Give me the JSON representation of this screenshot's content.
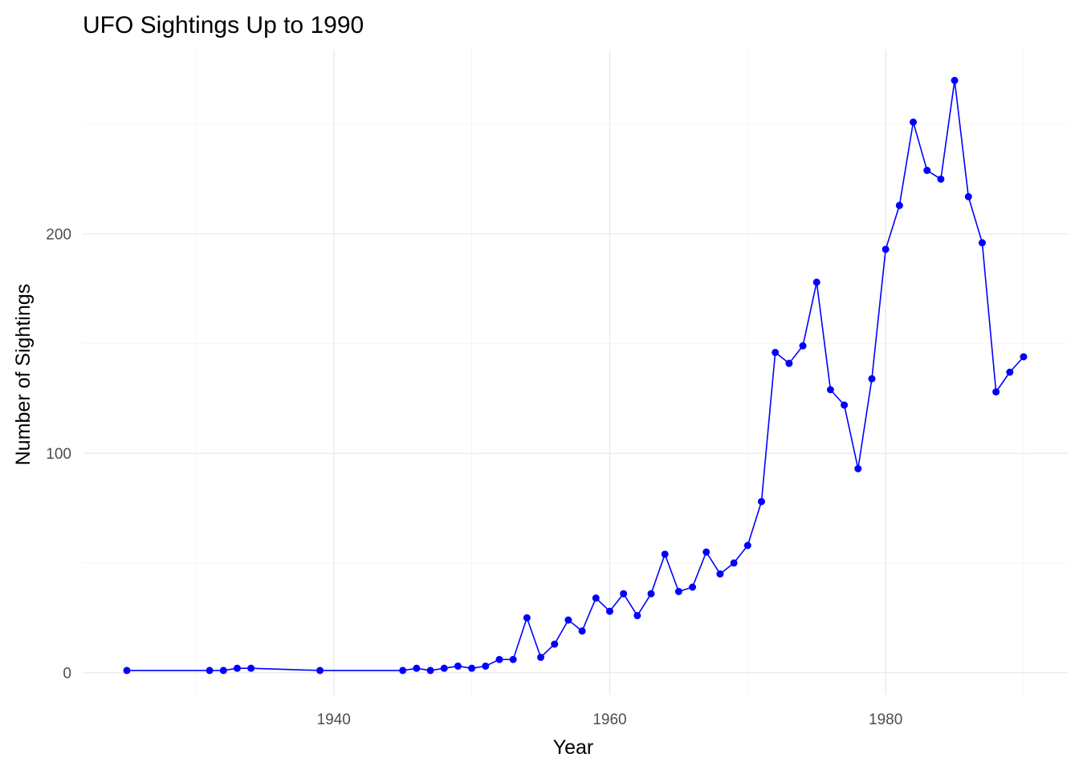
{
  "chart_data": {
    "type": "line",
    "title": "UFO Sightings Up to 1990",
    "xlabel": "Year",
    "ylabel": "Number of Sightings",
    "xlim": [
      1921.8,
      1993.2
    ],
    "ylim": [
      -10,
      284
    ],
    "x_ticks": [
      1940,
      1960,
      1980
    ],
    "y_ticks": [
      0,
      100,
      200
    ],
    "grid": true,
    "legend": "none",
    "line_color": "#0000ff",
    "point_color": "#0000ff",
    "series": [
      {
        "x": [
          1925,
          1931,
          1932,
          1933,
          1934,
          1939,
          1945,
          1946,
          1947,
          1948,
          1949,
          1950,
          1951,
          1952,
          1953,
          1954,
          1955,
          1956,
          1957,
          1958,
          1959,
          1960,
          1961,
          1962,
          1963,
          1964,
          1965,
          1966,
          1967,
          1968,
          1969,
          1970,
          1971,
          1972,
          1973,
          1974,
          1975,
          1976,
          1977,
          1978,
          1979,
          1980,
          1981,
          1982,
          1983,
          1984,
          1985,
          1986,
          1987,
          1988,
          1989,
          1990
        ],
        "y": [
          1,
          1,
          1,
          2,
          2,
          1,
          1,
          2,
          1,
          2,
          3,
          2,
          3,
          6,
          6,
          25,
          7,
          13,
          24,
          19,
          34,
          28,
          36,
          26,
          36,
          54,
          37,
          39,
          55,
          45,
          50,
          58,
          78,
          146,
          141,
          149,
          178,
          129,
          122,
          93,
          134,
          193,
          213,
          251,
          229,
          225,
          270,
          217,
          196,
          128,
          137,
          144
        ]
      }
    ]
  }
}
